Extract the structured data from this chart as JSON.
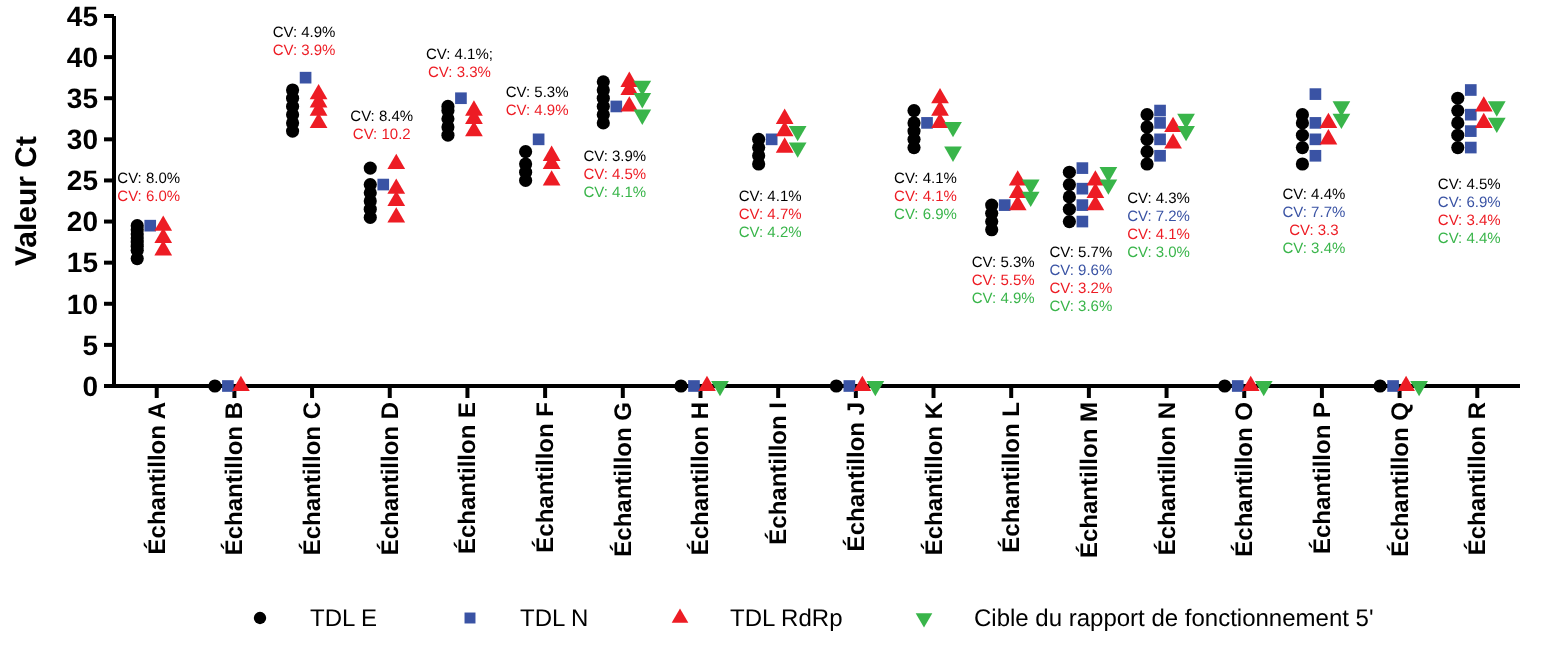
{
  "chart_data": {
    "type": "scatter",
    "ylabel": "Valeur Ct",
    "ylim": [
      0,
      45
    ],
    "yticks": [
      0,
      5,
      10,
      15,
      20,
      25,
      30,
      35,
      40,
      45
    ],
    "grid": false,
    "legend": "bottom",
    "categories": [
      "Échantillon A",
      "Échantillon B",
      "Échantillon C",
      "Échantillon D",
      "Échantillon E",
      "Échantillon F",
      "Échantillon G",
      "Échantillon H",
      "Échantillon I",
      "Échantillon J",
      "Échantillon K",
      "Échantillon L",
      "Échantillon M",
      "Échantillon N",
      "Échantillon O",
      "Échantillon P",
      "Échantillon Q",
      "Échantillon R"
    ],
    "series": [
      {
        "name": "TDL E",
        "color": "#000000",
        "marker": "circle",
        "x": [
          "Échantillon A",
          "Échantillon A",
          "Échantillon A",
          "Échantillon A",
          "Échantillon A",
          "Échantillon A",
          "Échantillon A",
          "Échantillon A",
          "Échantillon B",
          "Échantillon C",
          "Échantillon C",
          "Échantillon C",
          "Échantillon C",
          "Échantillon C",
          "Échantillon C",
          "Échantillon D",
          "Échantillon D",
          "Échantillon D",
          "Échantillon D",
          "Échantillon D",
          "Échantillon D",
          "Échantillon E",
          "Échantillon E",
          "Échantillon E",
          "Échantillon E",
          "Échantillon E",
          "Échantillon F",
          "Échantillon F",
          "Échantillon F",
          "Échantillon F",
          "Échantillon G",
          "Échantillon G",
          "Échantillon G",
          "Échantillon G",
          "Échantillon G",
          "Échantillon G",
          "Échantillon H",
          "Échantillon I",
          "Échantillon I",
          "Échantillon I",
          "Échantillon I",
          "Échantillon J",
          "Échantillon K",
          "Échantillon K",
          "Échantillon K",
          "Échantillon K",
          "Échantillon K",
          "Échantillon L",
          "Échantillon L",
          "Échantillon L",
          "Échantillon L",
          "Échantillon M",
          "Échantillon M",
          "Échantillon M",
          "Échantillon M",
          "Échantillon M",
          "Échantillon N",
          "Échantillon N",
          "Échantillon N",
          "Échantillon N",
          "Échantillon N",
          "Échantillon O",
          "Échantillon P",
          "Échantillon P",
          "Échantillon P",
          "Échantillon P",
          "Échantillon P",
          "Échantillon Q",
          "Échantillon R",
          "Échantillon R",
          "Échantillon R",
          "Échantillon R",
          "Échantillon R"
        ],
        "values": [
          15.5,
          16.5,
          17,
          17.5,
          18,
          18.5,
          19,
          19.5,
          0,
          31,
          32,
          33,
          34,
          35,
          36,
          20.5,
          21.5,
          22.5,
          23.5,
          24.5,
          26.5,
          30.5,
          31.5,
          32.5,
          33.5,
          34,
          25,
          26,
          27,
          28.5,
          32,
          33,
          34,
          35,
          36,
          37,
          0,
          27,
          28,
          29,
          30,
          0,
          29,
          30,
          31,
          32,
          33.5,
          19,
          20,
          21,
          22,
          20,
          21.5,
          23,
          24.5,
          26,
          27,
          28.5,
          30,
          31.5,
          33,
          0,
          27,
          29,
          30.5,
          32,
          33,
          0,
          29,
          30.5,
          32,
          33.5,
          35
        ]
      },
      {
        "name": "TDL N",
        "color": "#3a53a4",
        "marker": "square",
        "x": [
          "Échantillon A",
          "Échantillon B",
          "Échantillon C",
          "Échantillon D",
          "Échantillon E",
          "Échantillon F",
          "Échantillon G",
          "Échantillon H",
          "Échantillon I",
          "Échantillon J",
          "Échantillon K",
          "Échantillon L",
          "Échantillon M",
          "Échantillon M",
          "Échantillon M",
          "Échantillon M",
          "Échantillon N",
          "Échantillon N",
          "Échantillon N",
          "Échantillon N",
          "Échantillon O",
          "Échantillon P",
          "Échantillon P",
          "Échantillon P",
          "Échantillon P",
          "Échantillon Q",
          "Échantillon R",
          "Échantillon R",
          "Échantillon R",
          "Échantillon R"
        ],
        "values": [
          19.5,
          0,
          37.5,
          24.5,
          35,
          30,
          34,
          0,
          30,
          0,
          32,
          22,
          20,
          22,
          24,
          26.5,
          28,
          30,
          32,
          33.5,
          0,
          28,
          30,
          32,
          35.5,
          0,
          29,
          31,
          33,
          36
        ]
      },
      {
        "name": "TDL RdRp",
        "color": "#ed1c24",
        "marker": "triangle",
        "x": [
          "Échantillon A",
          "Échantillon A",
          "Échantillon A",
          "Échantillon B",
          "Échantillon C",
          "Échantillon C",
          "Échantillon C",
          "Échantillon C",
          "Échantillon D",
          "Échantillon D",
          "Échantillon D",
          "Échantillon D",
          "Échantillon E",
          "Échantillon E",
          "Échantillon E",
          "Échantillon F",
          "Échantillon F",
          "Échantillon F",
          "Échantillon G",
          "Échantillon G",
          "Échantillon G",
          "Échantillon H",
          "Échantillon I",
          "Échantillon I",
          "Échantillon I",
          "Échantillon J",
          "Échantillon K",
          "Échantillon K",
          "Échantillon K",
          "Échantillon L",
          "Échantillon L",
          "Échantillon L",
          "Échantillon M",
          "Échantillon M",
          "Échantillon M",
          "Échantillon N",
          "Échantillon N",
          "Échantillon O",
          "Échantillon P",
          "Échantillon P",
          "Échantillon Q",
          "Échantillon R",
          "Échantillon R"
        ],
        "values": [
          16.5,
          18,
          19.5,
          0,
          32,
          33.5,
          34.5,
          35.5,
          20.5,
          22.5,
          24,
          27,
          31,
          32.5,
          33.5,
          25,
          27,
          28,
          34,
          36,
          37,
          0,
          29,
          31,
          32.5,
          0,
          32,
          33.5,
          35,
          22,
          23.5,
          25,
          22,
          23.5,
          25,
          29.5,
          31.5,
          0,
          30,
          32,
          0,
          32,
          34
        ]
      },
      {
        "name": "Cible du rapport de fonctionnement 5'",
        "color": "#39b54a",
        "marker": "triangle-down",
        "x": [
          "Échantillon G",
          "Échantillon G",
          "Échantillon G",
          "Échantillon H",
          "Échantillon I",
          "Échantillon I",
          "Échantillon J",
          "Échantillon K",
          "Échantillon K",
          "Échantillon L",
          "Échantillon L",
          "Échantillon M",
          "Échantillon M",
          "Échantillon N",
          "Échantillon N",
          "Échantillon O",
          "Échantillon P",
          "Échantillon P",
          "Échantillon Q",
          "Échantillon R",
          "Échantillon R"
        ],
        "values": [
          33,
          35,
          36.5,
          0,
          29,
          31,
          0,
          28.5,
          31.5,
          23,
          24.5,
          24.5,
          26,
          31,
          32.5,
          0,
          32.5,
          34,
          0,
          32,
          34
        ]
      }
    ],
    "annotations": [
      "CV: 8.0%",
      "CV: 6.0%",
      "CV: 4.9%",
      "CV: 3.9%",
      "CV: 8.4%",
      "CV: 10.2",
      "CV: 4.1%;",
      "CV: 3.3%",
      "CV: 5.3%",
      "CV: 4.9%",
      "CV: 3.9%",
      "CV: 4.5%",
      "CV: 4.1%",
      "CV: 4.1%",
      "CV: 4.7%",
      "CV: 4.2%",
      "CV: 4.1%",
      "CV: 4.1%",
      "CV: 6.9%",
      "CV: 5.3%",
      "CV: 5.5%",
      "CV: 4.9%",
      "CV: 5.7%",
      "CV: 9.6%",
      "CV: 3.2%",
      "CV: 3.6%",
      "CV: 4.3%",
      "CV: 7.2%",
      "CV: 4.1%",
      "CV: 3.0%",
      "CV: 4.4%",
      "CV: 7.7%",
      "CV: 3.3",
      "CV: 3.4%",
      "CV: 4.5%",
      "CV: 6.9%",
      "CV: 3.4%",
      "CV: 4.4%"
    ]
  }
}
